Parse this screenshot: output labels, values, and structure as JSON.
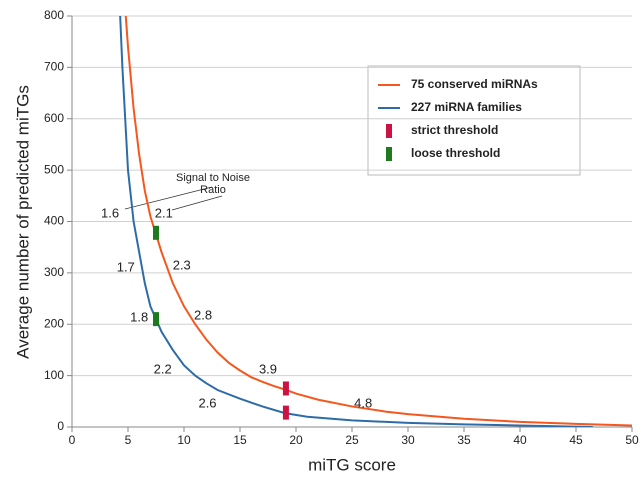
{
  "chart_data": {
    "type": "line",
    "x_label": "miTG score",
    "y_label": "Average number of predicted miTGs",
    "xlim": [
      0,
      50
    ],
    "ylim": [
      0,
      800
    ],
    "xticks": [
      0,
      5,
      10,
      15,
      20,
      25,
      30,
      35,
      40,
      45,
      50
    ],
    "yticks": [
      0,
      100,
      200,
      300,
      400,
      500,
      600,
      700,
      800
    ],
    "grid": true,
    "legend": "upper right",
    "series": [
      {
        "name": "75 conserved miRNAs",
        "color": "#f5571f",
        "style": "line",
        "x": [
          4.8,
          5,
          5.5,
          6,
          6.5,
          7,
          7.5,
          8,
          9,
          10,
          11,
          12,
          13,
          14,
          15,
          16,
          17,
          18,
          19,
          20,
          22,
          25,
          28,
          30,
          35,
          40,
          45,
          50
        ],
        "values": [
          800,
          740,
          620,
          530,
          460,
          410,
          375,
          340,
          280,
          235,
          200,
          170,
          145,
          125,
          110,
          97,
          88,
          80,
          73,
          65,
          53,
          40,
          30,
          25,
          16,
          10,
          6,
          3
        ]
      },
      {
        "name": "227 miRNA families",
        "color": "#2e6ca8",
        "style": "line",
        "x": [
          4.3,
          4.5,
          4.8,
          5,
          5.3,
          5.5,
          6,
          6.5,
          7,
          7.5,
          8,
          9,
          10,
          11,
          12,
          13,
          15,
          17,
          19,
          21,
          25,
          30,
          35,
          40,
          46.5
        ],
        "values": [
          800,
          700,
          580,
          500,
          440,
          400,
          340,
          280,
          235,
          210,
          185,
          150,
          120,
          100,
          85,
          72,
          55,
          40,
          27,
          20,
          13,
          8,
          5,
          3,
          0
        ]
      },
      {
        "name": "strict threshold",
        "color": "#cc1144",
        "style": "marker",
        "x": [
          19.1,
          19.1
        ],
        "values": [
          75,
          28
        ]
      },
      {
        "name": "loose threshold",
        "color": "#1e7a1e",
        "style": "marker",
        "x": [
          7.5,
          7.5
        ],
        "values": [
          378,
          210
        ]
      }
    ],
    "annotation": "Signal to Noise Ratio",
    "snr_labels": [
      {
        "value": 1.6,
        "x": 3.4,
        "y": 414
      },
      {
        "value": 1.7,
        "x": 4.8,
        "y": 309
      },
      {
        "value": 1.8,
        "x": 6.0,
        "y": 212
      },
      {
        "value": 2.2,
        "x": 8.1,
        "y": 111
      },
      {
        "value": 2.6,
        "x": 12.1,
        "y": 45
      },
      {
        "value": 2.1,
        "x": 8.2,
        "y": 414
      },
      {
        "value": 2.3,
        "x": 9.8,
        "y": 313
      },
      {
        "value": 2.8,
        "x": 11.7,
        "y": 216
      },
      {
        "value": 3.9,
        "x": 17.5,
        "y": 111
      },
      {
        "value": 4.8,
        "x": 26.0,
        "y": 45
      }
    ]
  }
}
